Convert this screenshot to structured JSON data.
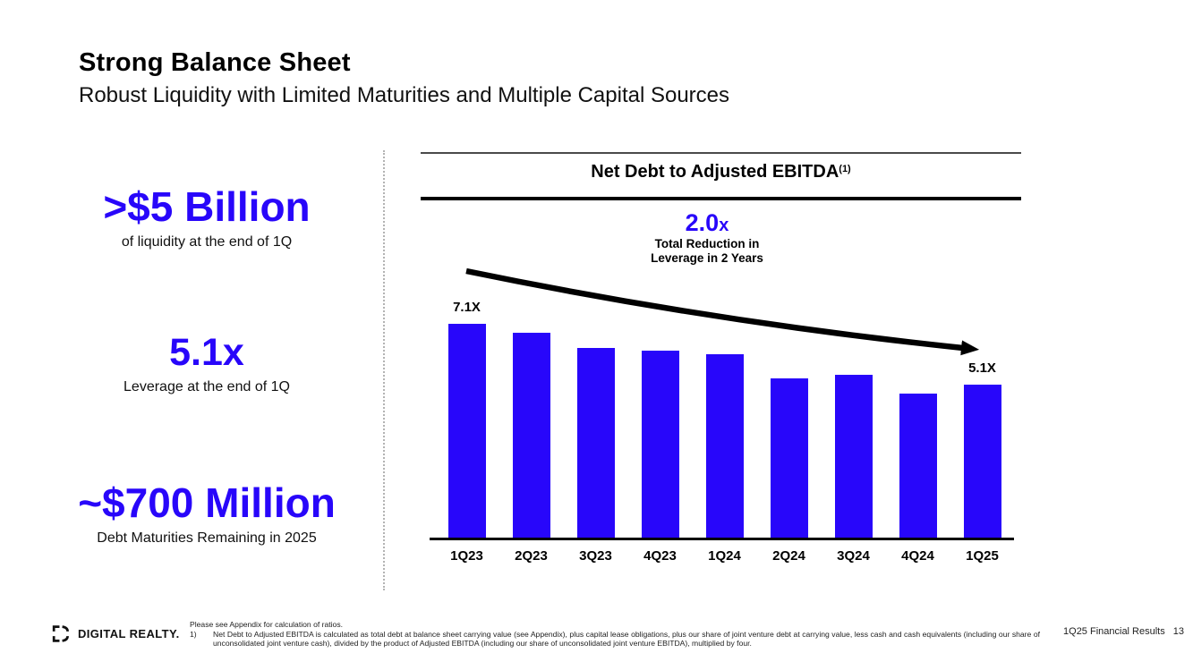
{
  "slide": {
    "title": "Strong Balance Sheet",
    "subtitle": "Robust Liquidity with Limited Maturities and Multiple Capital Sources"
  },
  "stats": [
    {
      "value": ">$5 Billion",
      "caption": "of liquidity at the end of 1Q"
    },
    {
      "value": "5.1x",
      "caption": "Leverage at the end of 1Q"
    },
    {
      "value": "~$700 Million",
      "caption": "Debt Maturities Remaining in 2025"
    }
  ],
  "chart_data": {
    "type": "bar",
    "title": "Net Debt to Adjusted EBITDA",
    "title_superscript": "(1)",
    "categories": [
      "1Q23",
      "2Q23",
      "3Q23",
      "4Q23",
      "1Q24",
      "2Q24",
      "3Q24",
      "4Q24",
      "1Q25"
    ],
    "values": [
      7.1,
      6.8,
      6.3,
      6.2,
      6.1,
      5.3,
      5.4,
      4.8,
      5.1
    ],
    "bar_labels": [
      "7.1X",
      "",
      "",
      "",
      "",
      "",
      "",
      "",
      "5.1X"
    ],
    "bar_color": "#2806fa",
    "ylim": [
      0,
      7.5
    ],
    "xlabel": "",
    "ylabel": "",
    "grid": false,
    "legend": "none",
    "annotation": {
      "headline": "2.0",
      "headline_suffix": "x",
      "line1": "Total Reduction in",
      "line2": "Leverage in 2 Years"
    },
    "arrow_note": "black downward trend arrow from above 1Q23 bar to above 1Q25 bar"
  },
  "footer": {
    "logo_text": "DIGITAL REALTY.",
    "note_line1": "Please see Appendix for calculation of ratios.",
    "note_number": "1)",
    "note_body": "Net Debt to Adjusted EBITDA is calculated as total debt at balance sheet carrying value (see Appendix), plus capital lease obligations, plus our share of joint venture debt at carrying value, less cash and cash equivalents (including our share of unconsolidated joint venture cash), divided by the product of Adjusted EBITDA (including our share of unconsolidated joint venture EBITDA), multiplied by four.",
    "page_label": "1Q25 Financial Results",
    "page_number": "13"
  },
  "colors": {
    "accent_blue": "#2806fa",
    "text_black": "#000000",
    "divider_gray": "#b3b3b3"
  }
}
